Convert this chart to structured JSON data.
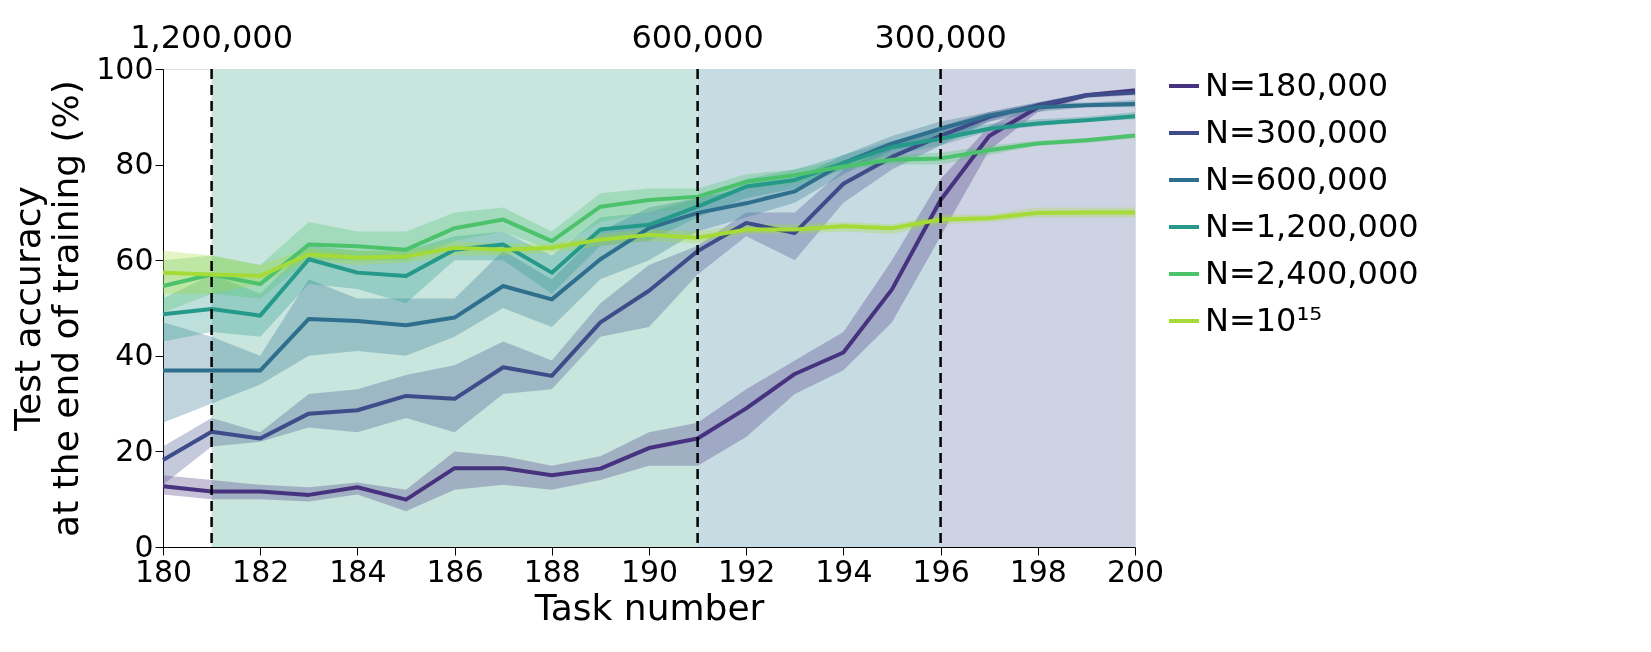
{
  "chart_data": {
    "type": "line",
    "xlabel": "Task number",
    "ylabel": "Test accuracy\nat the end of training (%)",
    "x": [
      180,
      181,
      182,
      183,
      184,
      185,
      186,
      187,
      188,
      189,
      190,
      191,
      192,
      193,
      194,
      195,
      196,
      197,
      198,
      199,
      200
    ],
    "xlim": [
      180,
      200
    ],
    "xticks": [
      180,
      182,
      184,
      186,
      188,
      190,
      192,
      194,
      196,
      198,
      200
    ],
    "ylim": [
      0,
      100
    ],
    "yticks": [
      0,
      20,
      40,
      60,
      80,
      100
    ],
    "annotations": [
      "1,200,000",
      "600,000",
      "300,000"
    ],
    "grid": false,
    "legend": "right",
    "marker": "none",
    "line_style": "solid",
    "series": [
      {
        "name": "N=180,000",
        "color": "#46327e",
        "values": [
          12.7,
          11.6,
          11.6,
          10.9,
          12.5,
          9.9,
          16.5,
          16.5,
          15,
          16.4,
          20.7,
          22.7,
          29,
          36.2,
          40.7,
          53.9,
          72.6,
          86,
          92,
          94.5,
          95.5
        ],
        "lower": [
          11,
          10,
          10,
          9.5,
          11,
          7.5,
          12,
          13,
          12,
          14,
          17,
          17,
          23,
          32,
          37,
          47,
          65,
          83,
          91,
          94,
          95
        ],
        "upper": [
          15,
          14,
          13,
          12.5,
          13.5,
          12,
          20,
          19,
          17,
          19,
          24,
          26,
          33,
          39,
          45,
          60,
          77,
          88,
          93,
          95,
          96
        ]
      },
      {
        "name": "N=300,000",
        "color": "#3e4c8a",
        "values": [
          18.2,
          24.1,
          22.7,
          27.9,
          28.6,
          31.6,
          31,
          37.6,
          35.8,
          47,
          53.6,
          61.9,
          67.8,
          65.7,
          76,
          81.6,
          86,
          90,
          92.4,
          94.5,
          95.1
        ],
        "lower": [
          13,
          21,
          22,
          25,
          24,
          27,
          24,
          32,
          33,
          44,
          46,
          57,
          65,
          60,
          72,
          79,
          84,
          89,
          92,
          94,
          94.5
        ],
        "upper": [
          21,
          27,
          24,
          32,
          33,
          36,
          38,
          43,
          39,
          51,
          59,
          63,
          70,
          70,
          79,
          84,
          88,
          91,
          93,
          95,
          95.5
        ]
      },
      {
        "name": "N=600,000",
        "color": "#2e6f8e",
        "values": [
          36.9,
          36.9,
          36.9,
          47.7,
          47.3,
          46.4,
          48,
          54.6,
          51.8,
          60.2,
          66.7,
          69.9,
          71.9,
          74.4,
          80.3,
          84.4,
          87.5,
          90.3,
          92,
          92.4,
          92.7
        ],
        "lower": [
          26,
          30,
          34,
          40,
          41,
          40,
          44,
          50,
          46,
          56,
          60,
          66,
          69,
          72,
          78,
          83,
          85,
          89,
          91,
          92,
          92
        ],
        "upper": [
          47,
          44,
          40,
          56,
          52,
          52,
          52,
          62,
          56,
          66,
          71,
          73,
          75,
          77,
          82,
          86,
          89,
          91,
          93,
          93,
          93.5
        ]
      },
      {
        "name": "N=1,200,000",
        "color": "#25998a",
        "values": [
          48.7,
          49.8,
          48.4,
          60.2,
          57.4,
          56.7,
          62.2,
          63.3,
          57.4,
          66.4,
          67.4,
          71.2,
          75.4,
          76.8,
          80.3,
          83.7,
          85.4,
          87.5,
          88.6,
          89.3,
          90.1
        ],
        "lower": [
          43,
          45,
          44,
          55,
          54,
          51,
          60,
          60,
          53,
          63,
          64,
          69,
          73,
          75,
          79,
          82,
          84,
          87,
          88,
          89,
          89.5
        ],
        "upper": [
          52,
          57,
          53,
          63,
          62,
          62,
          65,
          66,
          61,
          69,
          70,
          73,
          77,
          79,
          82,
          85,
          87,
          88.5,
          89.5,
          90,
          91
        ]
      },
      {
        "name": "N=2,400,000",
        "color": "#4cc26c",
        "values": [
          54.6,
          57,
          55,
          63.3,
          62.9,
          62.2,
          66.7,
          68.5,
          64,
          71.2,
          72.6,
          73.3,
          76.4,
          77.8,
          79.6,
          81,
          81.3,
          83,
          84.4,
          85.1,
          86.1
        ],
        "lower": [
          49,
          53,
          52,
          60,
          60,
          60,
          64,
          66,
          62,
          68,
          70,
          71,
          75,
          76,
          79,
          80,
          80,
          82,
          84,
          84.5,
          85.5
        ],
        "upper": [
          60,
          61,
          59,
          68,
          66,
          66,
          70,
          71,
          66,
          74,
          75,
          75,
          78,
          79,
          81,
          82,
          82.5,
          84,
          85,
          85.5,
          86.5
        ]
      },
      {
        "name": "N=10¹⁵",
        "color": "#a5db36",
        "values": [
          57.4,
          57,
          56.7,
          61.2,
          60.5,
          60.8,
          62.6,
          62.2,
          62.6,
          64.3,
          65.3,
          64.7,
          66.4,
          66.4,
          67.1,
          66.7,
          68.5,
          68.8,
          69.9,
          70,
          70
        ],
        "lower": [
          53,
          53,
          55,
          60,
          59,
          59.5,
          61,
          61,
          61.5,
          63,
          64,
          63.5,
          65.5,
          65.5,
          66,
          65.5,
          67.5,
          68,
          69,
          69,
          69
        ],
        "upper": [
          62,
          61,
          59,
          62.5,
          62,
          62,
          64,
          63.5,
          63.5,
          65.5,
          66.5,
          66,
          67.5,
          67.5,
          68,
          67.5,
          69.5,
          69.5,
          71,
          71,
          71
        ]
      }
    ],
    "bands": [
      {
        "axis": "x",
        "from": 181,
        "to": 191,
        "color": "#c8e6de"
      },
      {
        "axis": "x",
        "from": 191,
        "to": 196,
        "color": "#c6dce2"
      },
      {
        "axis": "x",
        "from": 196,
        "to": 200,
        "color": "#cdd3e2"
      }
    ],
    "ref_lines": [
      {
        "axis": "x",
        "value": 181,
        "line_style": "dashed",
        "color": "#000000"
      },
      {
        "axis": "x",
        "value": 191,
        "line_style": "dashed",
        "color": "#000000"
      },
      {
        "axis": "x",
        "value": 196,
        "line_style": "dashed",
        "color": "#000000"
      }
    ]
  }
}
